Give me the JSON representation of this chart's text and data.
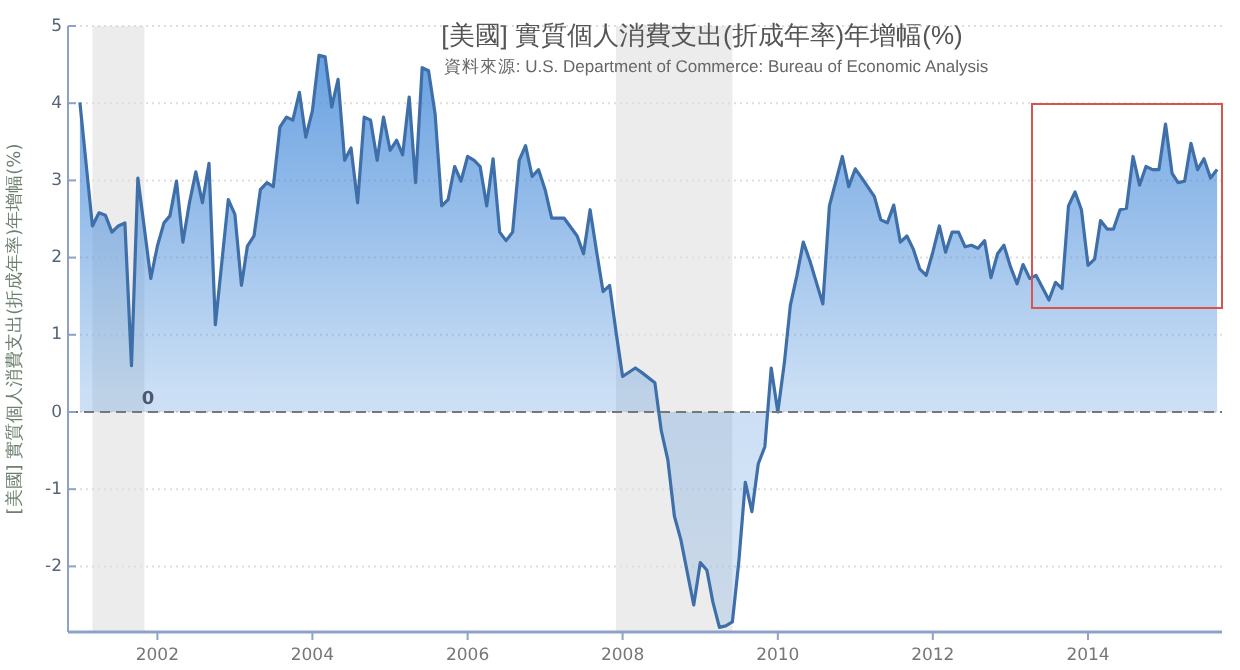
{
  "chart_data": {
    "type": "area",
    "title": "[美國] 實質個人消費支出(折成年率)年增幅(%)",
    "ylabel": "[美國] 實質個人消費支出(折成年率)年增幅(%)",
    "annotations": [
      "資料來源: U.S. Department of Commerce: Bureau of Economic Analysis",
      {
        "text": "0",
        "x": "2001-10",
        "y": 0
      }
    ],
    "x": [
      "2001-01",
      "2001-03",
      "2001-04",
      "2001-05",
      "2001-06",
      "2001-07",
      "2001-08",
      "2001-09",
      "2001-10",
      "2001-12",
      "2002-01",
      "2002-02",
      "2002-03",
      "2002-04",
      "2002-05",
      "2002-06",
      "2002-07",
      "2002-08",
      "2002-09",
      "2002-10",
      "2002-12",
      "2003-01",
      "2003-02",
      "2003-03",
      "2003-04",
      "2003-05",
      "2003-06",
      "2003-07",
      "2003-08",
      "2003-09",
      "2003-10",
      "2003-11",
      "2003-12",
      "2004-01",
      "2004-02",
      "2004-03",
      "2004-04",
      "2004-05",
      "2004-06",
      "2004-07",
      "2004-08",
      "2004-09",
      "2004-10",
      "2004-11",
      "2004-12",
      "2005-01",
      "2005-02",
      "2005-03",
      "2005-04",
      "2005-05",
      "2005-06",
      "2005-07",
      "2005-08",
      "2005-09",
      "2005-10",
      "2005-11",
      "2005-12",
      "2006-01",
      "2006-02",
      "2006-03",
      "2006-04",
      "2006-05",
      "2006-06",
      "2006-07",
      "2006-08",
      "2006-09",
      "2006-10",
      "2006-11",
      "2006-12",
      "2007-01",
      "2007-02",
      "2007-04",
      "2007-06",
      "2007-07",
      "2007-08",
      "2007-09",
      "2007-10",
      "2007-11",
      "2007-12",
      "2008-01",
      "2008-03",
      "2008-04",
      "2008-06",
      "2008-07",
      "2008-08",
      "2008-09",
      "2008-10",
      "2008-12",
      "2009-01",
      "2009-02",
      "2009-03",
      "2009-04",
      "2009-05",
      "2009-06",
      "2009-07",
      "2009-08",
      "2009-09",
      "2009-10",
      "2009-11",
      "2009-12",
      "2010-01",
      "2010-02",
      "2010-03",
      "2010-04",
      "2010-05",
      "2010-06",
      "2010-08",
      "2010-09",
      "2010-11",
      "2010-12",
      "2011-01",
      "2011-02",
      "2011-04",
      "2011-05",
      "2011-06",
      "2011-07",
      "2011-08",
      "2011-09",
      "2011-10",
      "2011-11",
      "2011-12",
      "2012-01",
      "2012-02",
      "2012-03",
      "2012-04",
      "2012-05",
      "2012-06",
      "2012-07",
      "2012-08",
      "2012-09",
      "2012-10",
      "2012-11",
      "2012-12",
      "2013-01",
      "2013-02",
      "2013-03",
      "2013-04",
      "2013-05",
      "2013-07",
      "2013-08",
      "2013-09",
      "2013-10",
      "2013-11",
      "2013-12",
      "2014-01",
      "2014-02",
      "2014-03",
      "2014-04",
      "2014-05",
      "2014-06",
      "2014-07",
      "2014-08",
      "2014-09",
      "2014-10",
      "2014-11",
      "2014-12",
      "2015-01",
      "2015-02",
      "2015-03",
      "2015-04",
      "2015-05",
      "2015-06",
      "2015-07",
      "2015-08",
      "2015-09"
    ],
    "series": [
      {
        "color": "#3f6fa8",
        "values": [
          4.01,
          2.41,
          2.58,
          2.55,
          2.33,
          2.41,
          2.45,
          0.6,
          3.03,
          1.73,
          2.15,
          2.45,
          2.54,
          2.99,
          2.2,
          2.71,
          3.11,
          2.71,
          3.22,
          1.13,
          2.75,
          2.56,
          1.64,
          2.15,
          2.28,
          2.88,
          2.97,
          2.92,
          3.69,
          3.82,
          3.78,
          4.14,
          3.56,
          3.9,
          4.62,
          4.6,
          3.95,
          4.31,
          3.26,
          3.42,
          2.71,
          3.82,
          3.78,
          3.26,
          3.82,
          3.39,
          3.52,
          3.33,
          4.08,
          2.97,
          4.46,
          4.42,
          3.86,
          2.67,
          2.75,
          3.18,
          2.99,
          3.31,
          3.26,
          3.18,
          2.67,
          3.28,
          2.33,
          2.22,
          2.33,
          3.26,
          3.45,
          3.05,
          3.14,
          2.88,
          2.51,
          2.51,
          2.28,
          2.05,
          2.62,
          2.07,
          1.56,
          1.64,
          1.04,
          0.46,
          0.57,
          0.51,
          0.38,
          -0.24,
          -0.62,
          -1.35,
          -1.65,
          -2.5,
          -1.95,
          -2.05,
          -2.46,
          -2.79,
          -2.77,
          -2.72,
          -1.95,
          -0.91,
          -1.29,
          -0.67,
          -0.45,
          0.57,
          0,
          0.64,
          1.38,
          1.77,
          2.2,
          1.96,
          1.4,
          2.67,
          3.31,
          2.92,
          3.15,
          3.03,
          2.79,
          2.49,
          2.45,
          2.68,
          2.2,
          2.28,
          2.11,
          1.85,
          1.77,
          2.07,
          2.41,
          2.07,
          2.33,
          2.33,
          2.14,
          2.16,
          2.12,
          2.22,
          1.74,
          2.05,
          2.16,
          1.88,
          1.66,
          1.91,
          1.73,
          1.77,
          1.45,
          1.68,
          1.6,
          2.67,
          2.85,
          2.62,
          1.9,
          1.98,
          2.48,
          2.37,
          2.37,
          2.62,
          2.64,
          3.31,
          2.94,
          3.18,
          3.14,
          3.14,
          3.73,
          3.09,
          2.97,
          2.99,
          3.48,
          3.14,
          3.28,
          3.03,
          3.14
        ]
      }
    ],
    "xlim": [
      "2000-11-06",
      "2015-09-24"
    ],
    "xticks": [
      "2002",
      "2004",
      "2006",
      "2008",
      "2010",
      "2012",
      "2014"
    ],
    "ylim": [
      -2.85,
      5
    ],
    "yticks": [
      5,
      4,
      3,
      2,
      1,
      0,
      -1,
      -2
    ],
    "grid": "y",
    "ref_lines": [
      {
        "axis": "y",
        "value": 0,
        "color": "#777777",
        "line_style": "dashed"
      }
    ],
    "bands": [
      {
        "axis": "x",
        "from": "2001-03",
        "to": "2001-11",
        "color": "#ececec"
      },
      {
        "axis": "x",
        "from": "2007-12",
        "to": "2009-06",
        "color": "#ececec"
      }
    ]
  }
}
